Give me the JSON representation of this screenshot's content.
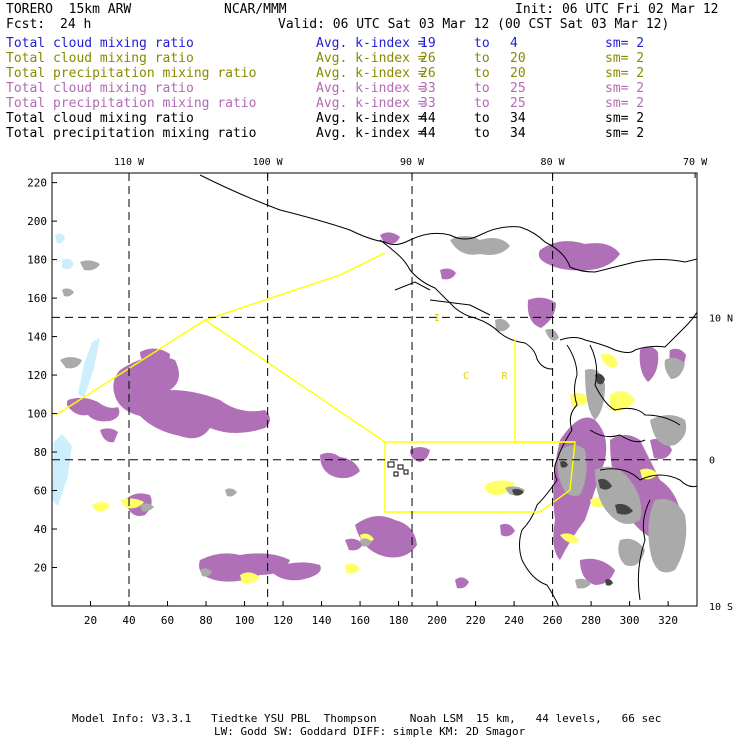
{
  "header": {
    "model": "TORERO  15km ARW",
    "center": "NCAR/MMM",
    "init": "Init: 06 UTC Fri 02 Mar 12",
    "fcst_label": "Fcst:",
    "fcst_value": "24 h",
    "valid": "Valid: 06 UTC Sat 03 Mar 12 (00 CST Sat 03 Mar 12)"
  },
  "colors": {
    "blue": "#1f1fd0",
    "olive": "#8a8a00",
    "violet": "#b36ab3",
    "black": "#000000",
    "cloud_purple": "#b070b8",
    "precip_yellow": "#ffff66",
    "cloud_gray": "#aaaaaa",
    "ice_blue": "#cdeffd",
    "track_yellow": "#ffff00"
  },
  "legend": [
    {
      "field": "Total cloud mixing ratio",
      "index": "Avg. k-index =",
      "from": "19",
      "to": "4",
      "sm": "sm= 2",
      "color": "#1f1fd0"
    },
    {
      "field": "Total cloud mixing ratio",
      "index": "Avg. k-index =",
      "from": "26",
      "to": "20",
      "sm": "sm= 2",
      "color": "#8a8a00"
    },
    {
      "field": "Total precipitation mixing ratio",
      "index": "Avg. k-index =",
      "from": "26",
      "to": "20",
      "sm": "sm= 2",
      "color": "#8a8a00"
    },
    {
      "field": "Total cloud mixing ratio",
      "index": "Avg. k-index =",
      "from": "33",
      "to": "25",
      "sm": "sm= 2",
      "color": "#b36ab3"
    },
    {
      "field": "Total precipitation mixing ratio",
      "index": "Avg. k-index =",
      "from": "33",
      "to": "25",
      "sm": "sm= 2",
      "color": "#b36ab3"
    },
    {
      "field": "Total cloud mixing ratio",
      "index": "Avg. k-index =",
      "from": "44",
      "to": "34",
      "sm": "sm= 2",
      "color": "#000000"
    },
    {
      "field": "Total precipitation mixing ratio",
      "index": "Avg. k-index =",
      "from": "44",
      "to": "34",
      "sm": "sm= 2",
      "color": "#000000"
    }
  ],
  "legend_to_word": "to",
  "chart_data": {
    "type": "map-contour",
    "x_range": [
      0,
      335
    ],
    "y_range": [
      0,
      225
    ],
    "x_ticks": [
      20,
      40,
      60,
      80,
      100,
      120,
      140,
      160,
      180,
      200,
      220,
      240,
      260,
      280,
      300,
      320
    ],
    "y_ticks": [
      20,
      40,
      60,
      80,
      100,
      120,
      140,
      160,
      180,
      200,
      220
    ],
    "lon_labels": [
      {
        "label": "110 W",
        "x": 40
      },
      {
        "label": "100 W",
        "x": 112
      },
      {
        "label": "90 W",
        "x": 187
      },
      {
        "label": "80 W",
        "x": 260
      },
      {
        "label": "70 W",
        "x": 334
      }
    ],
    "lat_labels": [
      {
        "label": "10 N",
        "y": 150
      },
      {
        "label": "0",
        "y": 76
      },
      {
        "label": "10 S",
        "y": 0
      }
    ],
    "gridlines_x": [
      40,
      112,
      187,
      260
    ],
    "gridlines_y": [
      150,
      76
    ],
    "map_text": [
      {
        "label": "I",
        "x": 200,
        "y": 148
      },
      {
        "label": "C",
        "x": 215,
        "y": 118
      },
      {
        "label": "R",
        "x": 235,
        "y": 118
      }
    ]
  },
  "footer": {
    "line1": "Model Info: V3.3.1   Tiedtke YSU PBL  Thompson     Noah LSM  15 km,   44 levels,   66 sec",
    "line2": "LW: Godd SW: Goddard DIFF: simple KM: 2D Smagor"
  }
}
